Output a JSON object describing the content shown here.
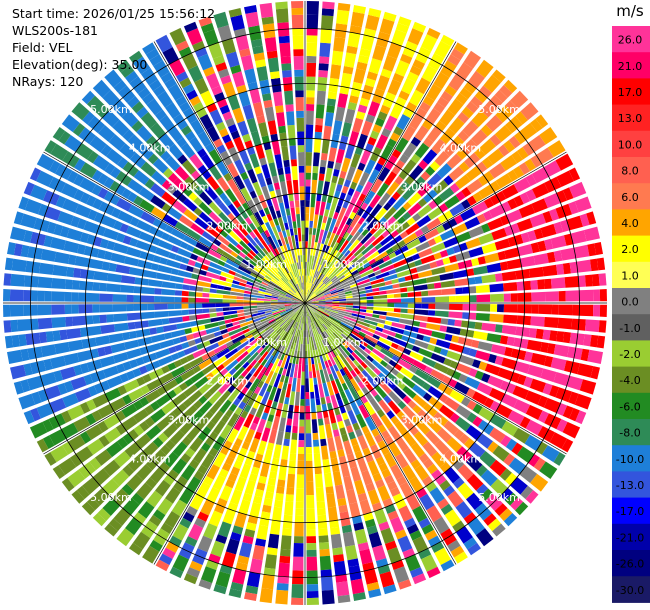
{
  "info": {
    "start_time": "Start time: 2026/01/25 15:56:12",
    "instrument": "WLS200s-181",
    "field": "Field: VEL",
    "elevation": "Elevation(deg): 35.00",
    "nrays": "NRays: 120"
  },
  "chart_data": {
    "type": "heatmap",
    "projection": "polar-ppi",
    "field": "VEL",
    "elevation_deg": 35.0,
    "nrays": 120,
    "range_rings_km": [
      1,
      2,
      3,
      4,
      5
    ],
    "ring_labels": [
      "1.00km",
      "2.00km",
      "3.00km",
      "4.00km",
      "5.00km"
    ],
    "max_range_km": 5.5,
    "colorbar": {
      "unit": "m/s",
      "ticks": [
        "26.0",
        "21.0",
        "17.0",
        "13.0",
        "10.0",
        "8.0",
        "6.0",
        "4.0",
        "2.0",
        "1.0",
        "0.0",
        "-1.0",
        "-2.0",
        "-4.0",
        "-6.0",
        "-8.0",
        "-10.0",
        "-13.0",
        "-17.0",
        "-21.0",
        "-26.0",
        "-30.0"
      ],
      "colors": [
        "#ff3399",
        "#ff0066",
        "#ff0000",
        "#ff2222",
        "#ff4040",
        "#ff6050",
        "#ff7a50",
        "#ffa500",
        "#ffff00",
        "#ffff55",
        "#808080",
        "#606060",
        "#9acd32",
        "#6b8e23",
        "#228b22",
        "#2e8b57",
        "#1e7fd8",
        "#3355dd",
        "#0000ff",
        "#0000aa",
        "#000080",
        "#1a1a66"
      ]
    }
  }
}
